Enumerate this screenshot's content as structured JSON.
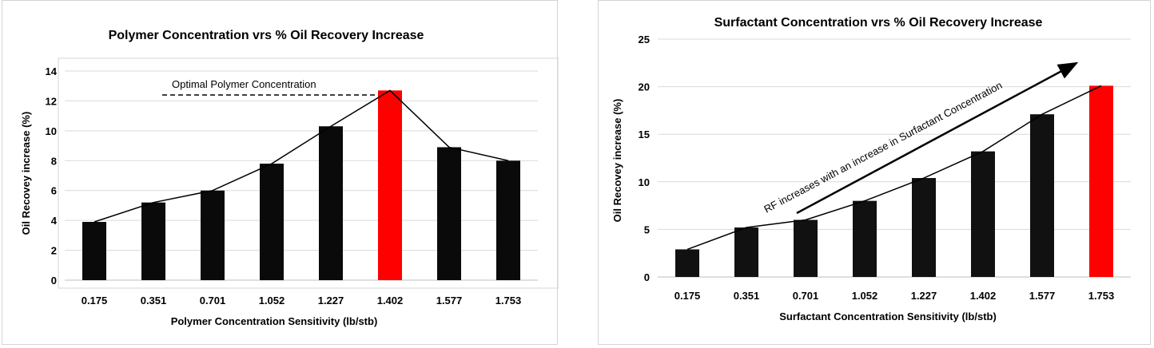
{
  "chart_data": [
    {
      "type": "bar",
      "title": "Polymer Concentration vrs % Oil Recovery Increase",
      "xlabel": "Polymer Concentration Sensitivity (lb/stb)",
      "ylabel": "Oil Recovey increase (%)",
      "categories": [
        "0.175",
        "0.351",
        "0.701",
        "1.052",
        "1.227",
        "1.402",
        "1.577",
        "1.753"
      ],
      "values": [
        3.9,
        5.2,
        6.0,
        7.8,
        10.3,
        12.7,
        8.9,
        8.0
      ],
      "highlight_index": 5,
      "ylim": [
        0,
        14
      ],
      "yticks": [
        0,
        2,
        4,
        6,
        8,
        10,
        12,
        14
      ],
      "grid": true,
      "overlay_line": true,
      "annotation": {
        "text": "Optimal Polymer Concentration",
        "dashed_to_index": 5
      },
      "colors": {
        "bar": "#0a0a0a",
        "highlight": "#ff0000",
        "line": "#000000"
      }
    },
    {
      "type": "bar",
      "title": "Surfactant Concentration vrs % Oil Recovery Increase",
      "xlabel": "Surfactant Concentration Sensitivity (lb/stb)",
      "ylabel": "Oil Recovey increase (%)",
      "categories": [
        "0.175",
        "0.351",
        "0.701",
        "1.052",
        "1.227",
        "1.402",
        "1.577",
        "1.753"
      ],
      "values": [
        2.9,
        5.2,
        6.0,
        8.0,
        10.4,
        13.2,
        17.1,
        20.1
      ],
      "highlight_index": 7,
      "ylim": [
        0,
        25
      ],
      "yticks": [
        0,
        5,
        10,
        15,
        20,
        25
      ],
      "grid": true,
      "overlay_line": true,
      "annotation": {
        "text": "RF increases with an increase in Surfactant Concentration"
      },
      "colors": {
        "bar": "#111111",
        "highlight": "#ff0000",
        "line": "#000000"
      }
    }
  ]
}
